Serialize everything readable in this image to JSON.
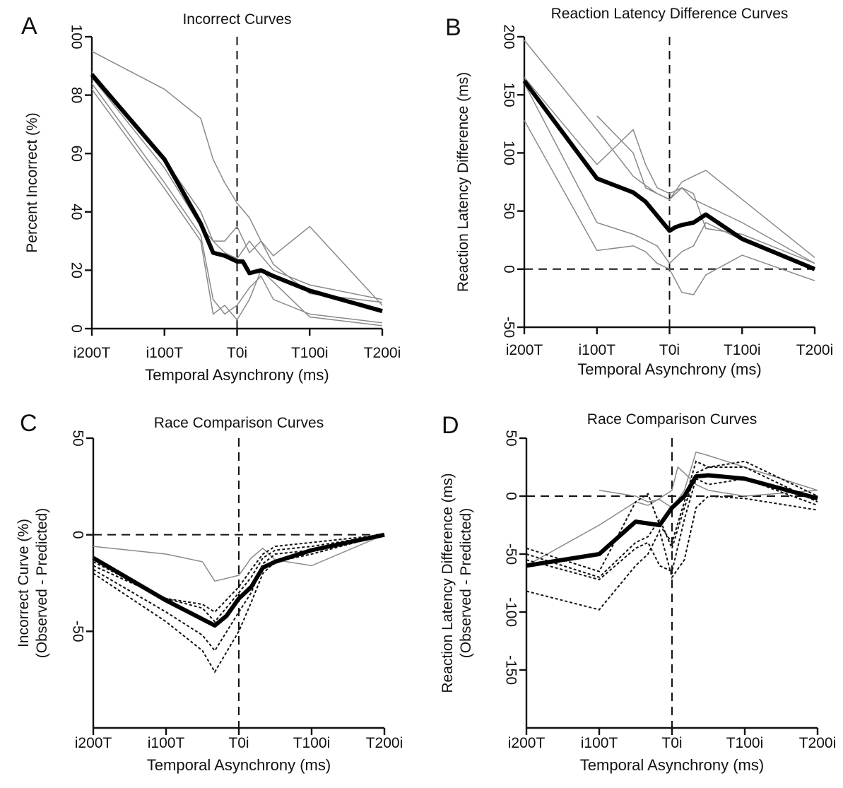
{
  "chart_data": [
    {
      "panel": "A",
      "type": "line",
      "title": "Incorrect Curves",
      "xlabel": "Temporal Asynchrony (ms)",
      "ylabel": "Percent Incorrect (%)",
      "xlim": [
        -200,
        200
      ],
      "ylim": [
        0,
        100
      ],
      "xticks": [
        -200,
        -100,
        0,
        100,
        200
      ],
      "xtick_labels": [
        "i200T",
        "i100T",
        "T0i",
        "T100i",
        "T200i"
      ],
      "yticks": [
        0,
        20,
        40,
        60,
        80,
        100
      ],
      "ytick_labels": [
        "0",
        "20",
        "40",
        "60",
        "80",
        "100"
      ],
      "reference_lines": {
        "x": 0
      },
      "series": [
        {
          "style": "gray",
          "x": [
            -200,
            -100,
            -50,
            -33,
            -17,
            0,
            17,
            33,
            50,
            100,
            200
          ],
          "y": [
            95,
            82,
            72,
            58,
            50,
            43,
            38,
            30,
            22,
            12,
            9
          ]
        },
        {
          "style": "gray",
          "x": [
            -200,
            -100,
            -50,
            -33,
            -17,
            0,
            17,
            33,
            50,
            100,
            200
          ],
          "y": [
            88,
            58,
            40,
            30,
            26,
            24,
            30,
            25,
            20,
            15,
            10
          ]
        },
        {
          "style": "gray",
          "x": [
            -200,
            -100,
            -50,
            -33,
            -17,
            0,
            17,
            33,
            50,
            100,
            200
          ],
          "y": [
            86,
            55,
            35,
            30,
            30,
            35,
            26,
            30,
            25,
            35,
            8
          ]
        },
        {
          "style": "gray",
          "x": [
            -200,
            -100,
            -50,
            -33,
            -17,
            0,
            17,
            33,
            50,
            100,
            200
          ],
          "y": [
            84,
            50,
            32,
            10,
            5,
            8,
            14,
            18,
            10,
            5,
            2
          ]
        },
        {
          "style": "gray",
          "x": [
            -200,
            -100,
            -50,
            -33,
            -17,
            0,
            17,
            33,
            50,
            100,
            200
          ],
          "y": [
            82,
            48,
            30,
            5,
            8,
            3,
            10,
            20,
            16,
            4,
            1
          ]
        },
        {
          "style": "mean",
          "x": [
            -200,
            -100,
            -50,
            -33,
            -17,
            0,
            8,
            17,
            33,
            50,
            100,
            200
          ],
          "y": [
            87,
            58,
            36,
            26,
            25,
            23,
            23,
            19,
            20,
            18,
            13,
            6
          ]
        }
      ]
    },
    {
      "panel": "B",
      "type": "line",
      "title": "Reaction Latency Difference Curves",
      "xlabel": "Temporal Asynchrony (ms)",
      "ylabel": "Reaction Latency Difference (ms)",
      "xlim": [
        -200,
        200
      ],
      "ylim": [
        -50,
        200
      ],
      "xticks": [
        -200,
        -100,
        0,
        100,
        200
      ],
      "xtick_labels": [
        "i200T",
        "i100T",
        "T0i",
        "T100i",
        "T200i"
      ],
      "yticks": [
        -50,
        0,
        50,
        100,
        150,
        200
      ],
      "ytick_labels": [
        "-50",
        "0",
        "50",
        "100",
        "150",
        "200"
      ],
      "reference_lines": {
        "x": 0,
        "y": 0
      },
      "series": [
        {
          "style": "gray",
          "x": [
            -200,
            -100,
            -50,
            -33,
            -17,
            0,
            17,
            33,
            50,
            100,
            200
          ],
          "y": [
            197,
            120,
            80,
            72,
            65,
            60,
            75,
            80,
            85,
            60,
            10
          ]
        },
        {
          "style": "gray",
          "x": [
            -200,
            -100,
            -50,
            -33,
            -17,
            0,
            17,
            33,
            50,
            100,
            200
          ],
          "y": [
            165,
            90,
            120,
            90,
            70,
            65,
            70,
            60,
            55,
            40,
            5
          ]
        },
        {
          "style": "gray",
          "x": [
            -200,
            -100,
            -50,
            -33,
            -17,
            0,
            17,
            33,
            50,
            100,
            200
          ],
          "y": [
            160,
            40,
            30,
            25,
            20,
            5,
            15,
            20,
            40,
            25,
            0
          ]
        },
        {
          "style": "gray",
          "x": [
            -200,
            -100,
            -50,
            -33,
            -17,
            0,
            17,
            33,
            50,
            100,
            200
          ],
          "y": [
            128,
            16,
            20,
            15,
            5,
            0,
            -20,
            -22,
            -5,
            12,
            -10
          ]
        },
        {
          "style": "gray",
          "x": [
            -100,
            -50,
            -33,
            -17,
            0,
            17,
            33,
            50,
            100,
            200
          ],
          "y": [
            132,
            100,
            70,
            65,
            60,
            70,
            65,
            35,
            30,
            5
          ]
        },
        {
          "style": "mean",
          "x": [
            -200,
            -100,
            -50,
            -33,
            -17,
            0,
            8,
            17,
            33,
            50,
            100,
            200
          ],
          "y": [
            162,
            78,
            66,
            58,
            46,
            33,
            36,
            38,
            40,
            47,
            26,
            0
          ]
        }
      ]
    },
    {
      "panel": "C",
      "type": "line",
      "title": "Race Comparison Curves",
      "xlabel": "Temporal Asynchrony (ms)",
      "ylabel": "Incorrect Curve (%)",
      "ylabel2": "(Observed - Predicted)",
      "xlim": [
        -200,
        200
      ],
      "ylim": [
        -100,
        50
      ],
      "xticks": [
        -200,
        -100,
        0,
        100,
        200
      ],
      "xtick_labels": [
        "i200T",
        "i100T",
        "T0i",
        "T100i",
        "T200i"
      ],
      "yticks": [
        -50,
        0,
        50
      ],
      "ytick_labels": [
        "-50",
        "0",
        "50"
      ],
      "reference_lines": {
        "x": 0,
        "y": 0
      },
      "series": [
        {
          "style": "gray",
          "x": [
            -200,
            -100,
            -50,
            -33,
            0,
            17,
            33,
            50,
            100,
            200
          ],
          "y": [
            -6,
            -10,
            -14,
            -24,
            -21,
            -12,
            -7,
            -13,
            -16,
            0
          ]
        },
        {
          "style": "dotted",
          "x": [
            -200,
            -100,
            -50,
            -33,
            0,
            17,
            33,
            50,
            100,
            200
          ],
          "y": [
            -14,
            -33,
            -36,
            -40,
            -27,
            -18,
            -10,
            -6,
            -4,
            0
          ]
        },
        {
          "style": "dotted",
          "x": [
            -200,
            -100,
            -50,
            -33,
            0,
            17,
            33,
            50,
            100,
            200
          ],
          "y": [
            -16,
            -33,
            -38,
            -45,
            -30,
            -22,
            -12,
            -8,
            -6,
            0
          ]
        },
        {
          "style": "dotted",
          "x": [
            -200,
            -100,
            -50,
            -33,
            0,
            17,
            33,
            50,
            100,
            200
          ],
          "y": [
            -18,
            -40,
            -52,
            -60,
            -40,
            -30,
            -15,
            -10,
            -8,
            0
          ]
        },
        {
          "style": "dotted",
          "x": [
            -200,
            -100,
            -50,
            -33,
            0,
            17,
            33,
            50,
            100,
            200
          ],
          "y": [
            -20,
            -45,
            -60,
            -71,
            -50,
            -35,
            -20,
            -14,
            -10,
            0
          ]
        },
        {
          "style": "mean",
          "x": [
            -200,
            -100,
            -33,
            -17,
            0,
            17,
            33,
            50,
            100,
            200
          ],
          "y": [
            -12,
            -34,
            -47,
            -42,
            -33,
            -27,
            -17,
            -14,
            -8,
            0
          ]
        }
      ]
    },
    {
      "panel": "D",
      "type": "line",
      "title": "Race Comparison Curves",
      "xlabel": "Temporal Asynchrony (ms)",
      "ylabel": "Reaction Latency Difference (ms)",
      "ylabel2": "(Observed - Predicted)",
      "xlim": [
        -200,
        200
      ],
      "ylim": [
        -200,
        50
      ],
      "xticks": [
        -200,
        -100,
        0,
        100,
        200
      ],
      "xtick_labels": [
        "i200T",
        "i100T",
        "T0i",
        "T100i",
        "T200i"
      ],
      "yticks": [
        -150,
        -100,
        -50,
        0,
        50
      ],
      "ytick_labels": [
        "-150",
        "-100",
        "-50",
        "0",
        "50"
      ],
      "reference_lines": {
        "x": 0,
        "y": 0
      },
      "series": [
        {
          "style": "gray",
          "x": [
            -200,
            -100,
            -50,
            -33,
            -17,
            0,
            8,
            17,
            33,
            50,
            100,
            200
          ],
          "y": [
            -60,
            -25,
            -5,
            -8,
            -2,
            5,
            25,
            20,
            10,
            5,
            0,
            5
          ]
        },
        {
          "style": "gray",
          "x": [
            -100,
            -50,
            -33,
            -17,
            0,
            17,
            33,
            50,
            100,
            200
          ],
          "y": [
            5,
            0,
            -5,
            -3,
            -10,
            5,
            38,
            35,
            25,
            5
          ]
        },
        {
          "style": "dotted",
          "x": [
            -200,
            -100,
            -50,
            -33,
            -17,
            0,
            17,
            33,
            50,
            100,
            200
          ],
          "y": [
            -45,
            -65,
            -5,
            2,
            -25,
            -40,
            -5,
            30,
            25,
            30,
            0
          ]
        },
        {
          "style": "dotted",
          "x": [
            -200,
            -100,
            -50,
            -33,
            -17,
            0,
            17,
            33,
            50,
            100,
            200
          ],
          "y": [
            -50,
            -70,
            -40,
            -35,
            -20,
            -45,
            -10,
            20,
            25,
            25,
            -5
          ]
        },
        {
          "style": "dotted",
          "x": [
            -200,
            -100,
            -50,
            -33,
            -17,
            0,
            17,
            33,
            50,
            100,
            200
          ],
          "y": [
            -55,
            -72,
            -45,
            -40,
            -60,
            -65,
            -20,
            15,
            10,
            15,
            -8
          ]
        },
        {
          "style": "dotted",
          "x": [
            -200,
            -100,
            -50,
            -33,
            -17,
            0,
            17,
            33,
            50,
            100,
            200
          ],
          "y": [
            -82,
            -98,
            -60,
            -50,
            -30,
            -70,
            -55,
            -10,
            0,
            -2,
            -12
          ]
        },
        {
          "style": "mean",
          "x": [
            -200,
            -100,
            -50,
            -17,
            0,
            17,
            33,
            50,
            100,
            200
          ],
          "y": [
            -60,
            -50,
            -22,
            -25,
            -10,
            0,
            17,
            18,
            15,
            -2
          ]
        }
      ]
    }
  ],
  "panel_letters": [
    "A",
    "B",
    "C",
    "D"
  ]
}
